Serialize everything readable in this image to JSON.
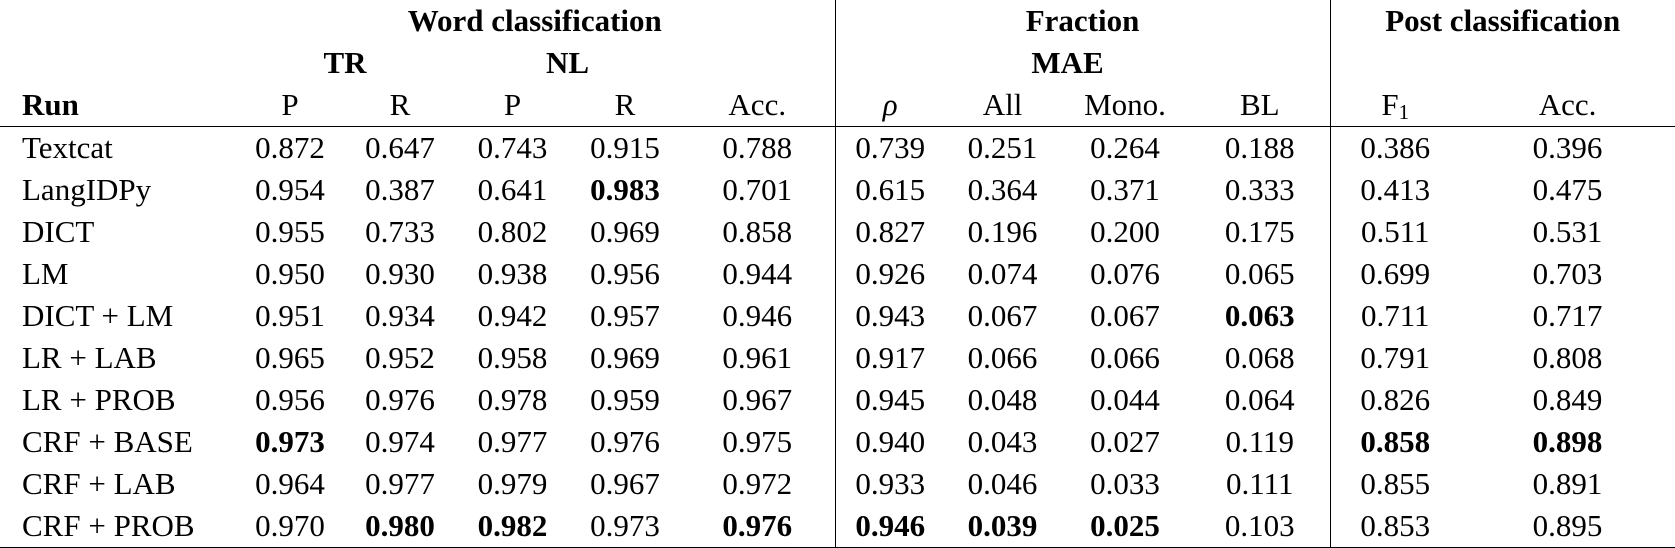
{
  "header": {
    "group_word": "Word classification",
    "group_fraction": "Fraction",
    "group_post": "Post classification",
    "sub_tr": "TR",
    "sub_nl": "NL",
    "sub_mae": "MAE",
    "col_run": "Run",
    "col_p1": "P",
    "col_r1": "R",
    "col_p2": "P",
    "col_r2": "R",
    "col_acc1": "Acc.",
    "col_rho": "ρ",
    "col_all": "All",
    "col_mono": "Mono.",
    "col_bl": "BL",
    "col_f1_base": "F",
    "col_f1_sub": "1",
    "col_acc2": "Acc."
  },
  "rows": [
    {
      "run": "Textcat",
      "v": [
        "0.872",
        "0.647",
        "0.743",
        "0.915",
        "0.788",
        "0.739",
        "0.251",
        "0.264",
        "0.188",
        "0.386",
        "0.396"
      ],
      "bold": []
    },
    {
      "run": "LangIDPy",
      "v": [
        "0.954",
        "0.387",
        "0.641",
        "0.983",
        "0.701",
        "0.615",
        "0.364",
        "0.371",
        "0.333",
        "0.413",
        "0.475"
      ],
      "bold": [
        3
      ]
    },
    {
      "run": "DICT",
      "v": [
        "0.955",
        "0.733",
        "0.802",
        "0.969",
        "0.858",
        "0.827",
        "0.196",
        "0.200",
        "0.175",
        "0.511",
        "0.531"
      ],
      "bold": []
    },
    {
      "run": "LM",
      "v": [
        "0.950",
        "0.930",
        "0.938",
        "0.956",
        "0.944",
        "0.926",
        "0.074",
        "0.076",
        "0.065",
        "0.699",
        "0.703"
      ],
      "bold": []
    },
    {
      "run": "DICT + LM",
      "v": [
        "0.951",
        "0.934",
        "0.942",
        "0.957",
        "0.946",
        "0.943",
        "0.067",
        "0.067",
        "0.063",
        "0.711",
        "0.717"
      ],
      "bold": [
        8
      ]
    },
    {
      "run": "LR + LAB",
      "v": [
        "0.965",
        "0.952",
        "0.958",
        "0.969",
        "0.961",
        "0.917",
        "0.066",
        "0.066",
        "0.068",
        "0.791",
        "0.808"
      ],
      "bold": []
    },
    {
      "run": "LR + PROB",
      "v": [
        "0.956",
        "0.976",
        "0.978",
        "0.959",
        "0.967",
        "0.945",
        "0.048",
        "0.044",
        "0.064",
        "0.826",
        "0.849"
      ],
      "bold": []
    },
    {
      "run": "CRF + BASE",
      "v": [
        "0.973",
        "0.974",
        "0.977",
        "0.976",
        "0.975",
        "0.940",
        "0.043",
        "0.027",
        "0.119",
        "0.858",
        "0.898"
      ],
      "bold": [
        0,
        9,
        10
      ]
    },
    {
      "run": "CRF + LAB",
      "v": [
        "0.964",
        "0.977",
        "0.979",
        "0.967",
        "0.972",
        "0.933",
        "0.046",
        "0.033",
        "0.111",
        "0.855",
        "0.891"
      ],
      "bold": []
    },
    {
      "run": "CRF + PROB",
      "v": [
        "0.970",
        "0.980",
        "0.982",
        "0.973",
        "0.976",
        "0.946",
        "0.039",
        "0.025",
        "0.103",
        "0.853",
        "0.895"
      ],
      "bold": [
        1,
        2,
        4,
        5,
        6,
        7
      ]
    }
  ]
}
